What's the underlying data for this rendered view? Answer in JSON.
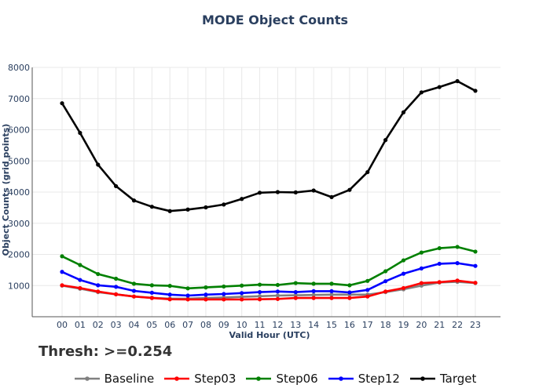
{
  "chart_data": {
    "type": "line",
    "title": "MODE Object Counts",
    "xlabel": "Valid Hour (UTC)",
    "ylabel": "Object Counts (grid points)",
    "annotation": "Thresh: >=0.254",
    "categories": [
      "00",
      "01",
      "02",
      "03",
      "04",
      "05",
      "06",
      "07",
      "08",
      "09",
      "10",
      "11",
      "12",
      "13",
      "14",
      "15",
      "16",
      "17",
      "18",
      "19",
      "20",
      "21",
      "22",
      "23"
    ],
    "ylim": [
      0,
      8000
    ],
    "yticks": [
      1000,
      2000,
      3000,
      4000,
      5000,
      6000,
      7000,
      8000
    ],
    "grid": true,
    "legend_position": "bottom",
    "series": [
      {
        "name": "Baseline",
        "color": "#808080",
        "values": [
          1000,
          900,
          790,
          720,
          650,
          610,
          580,
          580,
          600,
          620,
          640,
          660,
          680,
          690,
          700,
          710,
          710,
          710,
          790,
          880,
          1000,
          1100,
          1120,
          1080
        ]
      },
      {
        "name": "Step03",
        "color": "#ff0000",
        "values": [
          1010,
          920,
          810,
          720,
          650,
          600,
          560,
          555,
          555,
          555,
          555,
          560,
          570,
          600,
          600,
          600,
          600,
          650,
          810,
          920,
          1080,
          1110,
          1160,
          1090
        ]
      },
      {
        "name": "Step06",
        "color": "#008000",
        "values": [
          1940,
          1660,
          1370,
          1220,
          1060,
          1010,
          990,
          910,
          940,
          970,
          1000,
          1030,
          1020,
          1080,
          1060,
          1060,
          1010,
          1150,
          1460,
          1810,
          2060,
          2200,
          2240,
          2090
        ]
      },
      {
        "name": "Step12",
        "color": "#0000ff",
        "values": [
          1440,
          1180,
          1010,
          960,
          830,
          770,
          710,
          680,
          710,
          730,
          760,
          790,
          810,
          790,
          820,
          820,
          780,
          860,
          1140,
          1380,
          1550,
          1700,
          1720,
          1630
        ]
      },
      {
        "name": "Target",
        "color": "#000000",
        "values": [
          6850,
          5900,
          4880,
          4190,
          3730,
          3530,
          3390,
          3440,
          3510,
          3600,
          3780,
          3980,
          4000,
          3990,
          4050,
          3840,
          4070,
          4640,
          5670,
          6560,
          7200,
          7370,
          7560,
          7250
        ]
      }
    ]
  }
}
